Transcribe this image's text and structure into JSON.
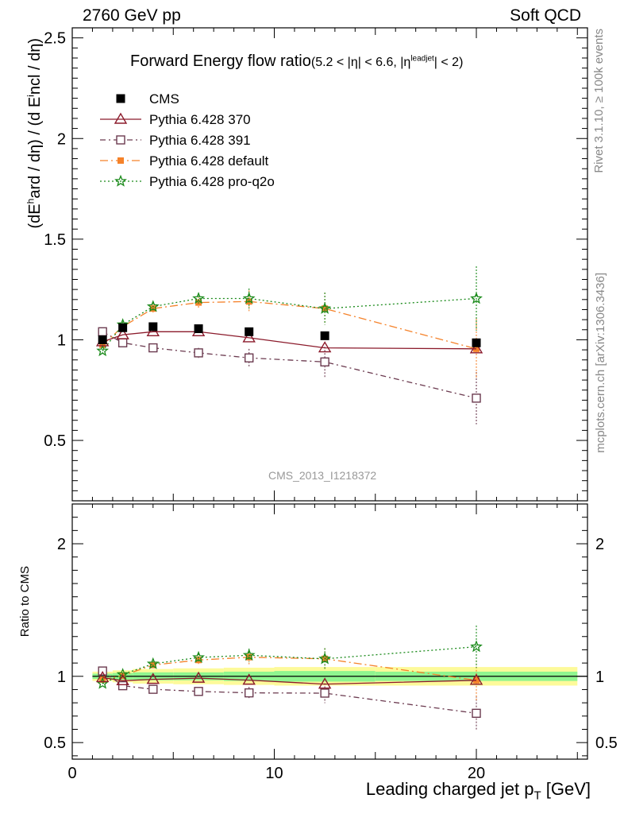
{
  "header": {
    "left": "2760 GeV pp",
    "right": "Soft QCD"
  },
  "side_text": {
    "rivet": "Rivet 3.1.10, ≥ 100k events",
    "mcplots": "mcplots.cern.ch [arXiv:1306.3436]"
  },
  "watermark": "CMS_2013_I1218372",
  "colors": {
    "cms": "#000000",
    "p370": "#8b1a2b",
    "p391": "#6b3a4f",
    "default": "#f5822a",
    "proq2o": "#1a8a1a",
    "band_inner": "#8ff58f",
    "band_outer": "#fdfa9a"
  },
  "chart_data": [
    {
      "type": "scatter",
      "panel": "main",
      "title": "Forward Energy flow ratio",
      "title_suffix": "(5.2 < |η| < 6.6, |η^leadjet| < 2)",
      "title_pre": "(5.2 < |η| < 6.6, |η",
      "title_sup": "leadjet",
      "title_post": "| < 2)",
      "xlabel": "Leading charged jet p_T [GeV]",
      "xlabel_main": "Leading charged jet p",
      "xlabel_sub": "T",
      "xlabel_unit": " [GeV]",
      "ylabel": "(dE^hard / dη) / (d Eincl / dη)",
      "ylabel_a": "(dE",
      "ylabel_sup": "h",
      "ylabel_b": "ard / dη) / (d E",
      "ylabel_mid": "i",
      "ylabel_c": "ncl / dη)",
      "xlim": [
        0,
        25.5
      ],
      "ylim": [
        0.2,
        2.55
      ],
      "x_ticks": [
        0,
        10,
        20
      ],
      "y_ticks": [
        0.5,
        1,
        1.5,
        2,
        2.5
      ],
      "legend_position": "top-left",
      "series": [
        {
          "name": "CMS",
          "key": "cms",
          "marker": "filled-square",
          "line": "none",
          "x": [
            1.5,
            2.5,
            4.0,
            6.25,
            8.75,
            12.5,
            20.0
          ],
          "y": [
            1.0,
            1.06,
            1.065,
            1.055,
            1.04,
            1.02,
            0.985
          ],
          "err": [
            0.0,
            0.0,
            0.0,
            0.0,
            0.0,
            0.0,
            0.0
          ]
        },
        {
          "name": "Pythia 6.428 370",
          "key": "p370",
          "marker": "open-triangle",
          "line": "solid",
          "x": [
            1.5,
            2.5,
            4.0,
            6.25,
            8.75,
            12.5,
            20.0
          ],
          "y": [
            0.99,
            1.025,
            1.04,
            1.04,
            1.01,
            0.96,
            0.955
          ],
          "err": [
            0.0,
            0.0,
            0.0,
            0.0,
            0.0,
            0.0,
            0.0
          ]
        },
        {
          "name": "Pythia 6.428 391",
          "key": "p391",
          "marker": "open-square",
          "line": "dashdot",
          "x": [
            1.5,
            2.5,
            4.0,
            6.25,
            8.75,
            12.5,
            20.0
          ],
          "y": [
            1.04,
            0.985,
            0.96,
            0.935,
            0.91,
            0.89,
            0.71
          ],
          "err": [
            0.015,
            0.015,
            0.02,
            0.025,
            0.045,
            0.075,
            0.13
          ]
        },
        {
          "name": "Pythia 6.428 default",
          "key": "default",
          "marker": "filled-square-small",
          "line": "dashdot-long",
          "x": [
            1.5,
            2.5,
            4.0,
            6.25,
            8.75,
            12.5,
            20.0
          ],
          "y": [
            0.975,
            1.065,
            1.155,
            1.185,
            1.19,
            1.155,
            0.955
          ],
          "err": [
            0.01,
            0.015,
            0.02,
            0.03,
            0.055,
            0.08,
            0.15
          ]
        },
        {
          "name": "Pythia 6.428 pro-q2o",
          "key": "proq2o",
          "marker": "star",
          "line": "dotted",
          "x": [
            1.5,
            2.5,
            4.0,
            6.25,
            8.75,
            12.5,
            20.0
          ],
          "y": [
            0.945,
            1.075,
            1.165,
            1.205,
            1.205,
            1.155,
            1.205
          ],
          "err": [
            0.01,
            0.015,
            0.02,
            0.03,
            0.05,
            0.08,
            0.16
          ]
        }
      ]
    },
    {
      "type": "scatter",
      "panel": "ratio",
      "ylabel": "Ratio to CMS",
      "xlim": [
        0,
        25.5
      ],
      "ylim": [
        0.375,
        2.3
      ],
      "x_ticks": [
        0,
        10,
        20
      ],
      "y_ticks": [
        0.5,
        1,
        2
      ],
      "bands": {
        "x_edges": [
          1.0,
          2.0,
          3.0,
          5.0,
          7.5,
          10.0,
          15.0,
          25.0
        ],
        "inner": [
          0.02,
          0.025,
          0.03,
          0.03,
          0.035,
          0.04,
          0.035
        ],
        "outer": [
          0.035,
          0.045,
          0.055,
          0.06,
          0.065,
          0.07,
          0.07
        ]
      },
      "series": [
        {
          "name": "Pythia 6.428 370",
          "key": "p370",
          "marker": "open-triangle",
          "line": "solid",
          "x": [
            1.5,
            2.5,
            4.0,
            6.25,
            8.75,
            12.5,
            20.0
          ],
          "y": [
            0.99,
            0.967,
            0.977,
            0.986,
            0.971,
            0.941,
            0.97
          ],
          "err": [
            0.0,
            0.0,
            0.0,
            0.0,
            0.0,
            0.0,
            0.0
          ]
        },
        {
          "name": "Pythia 6.428 391",
          "key": "p391",
          "marker": "open-square",
          "line": "dashdot",
          "x": [
            1.5,
            2.5,
            4.0,
            6.25,
            8.75,
            12.5,
            20.0
          ],
          "y": [
            1.04,
            0.929,
            0.902,
            0.886,
            0.875,
            0.873,
            0.721
          ],
          "err": [
            0.015,
            0.015,
            0.02,
            0.025,
            0.045,
            0.075,
            0.13
          ]
        },
        {
          "name": "Pythia 6.428 default",
          "key": "default",
          "marker": "filled-square-small",
          "line": "dashdot-long",
          "x": [
            1.5,
            2.5,
            4.0,
            6.25,
            8.75,
            12.5,
            20.0
          ],
          "y": [
            0.975,
            1.005,
            1.085,
            1.123,
            1.144,
            1.132,
            0.97
          ],
          "err": [
            0.01,
            0.015,
            0.02,
            0.03,
            0.055,
            0.08,
            0.15
          ]
        },
        {
          "name": "Pythia 6.428 pro-q2o",
          "key": "proq2o",
          "marker": "star",
          "line": "dotted",
          "x": [
            1.5,
            2.5,
            4.0,
            6.25,
            8.75,
            12.5,
            20.0
          ],
          "y": [
            0.945,
            1.014,
            1.094,
            1.142,
            1.159,
            1.132,
            1.223
          ],
          "err": [
            0.01,
            0.015,
            0.02,
            0.03,
            0.05,
            0.08,
            0.16
          ]
        }
      ]
    }
  ]
}
